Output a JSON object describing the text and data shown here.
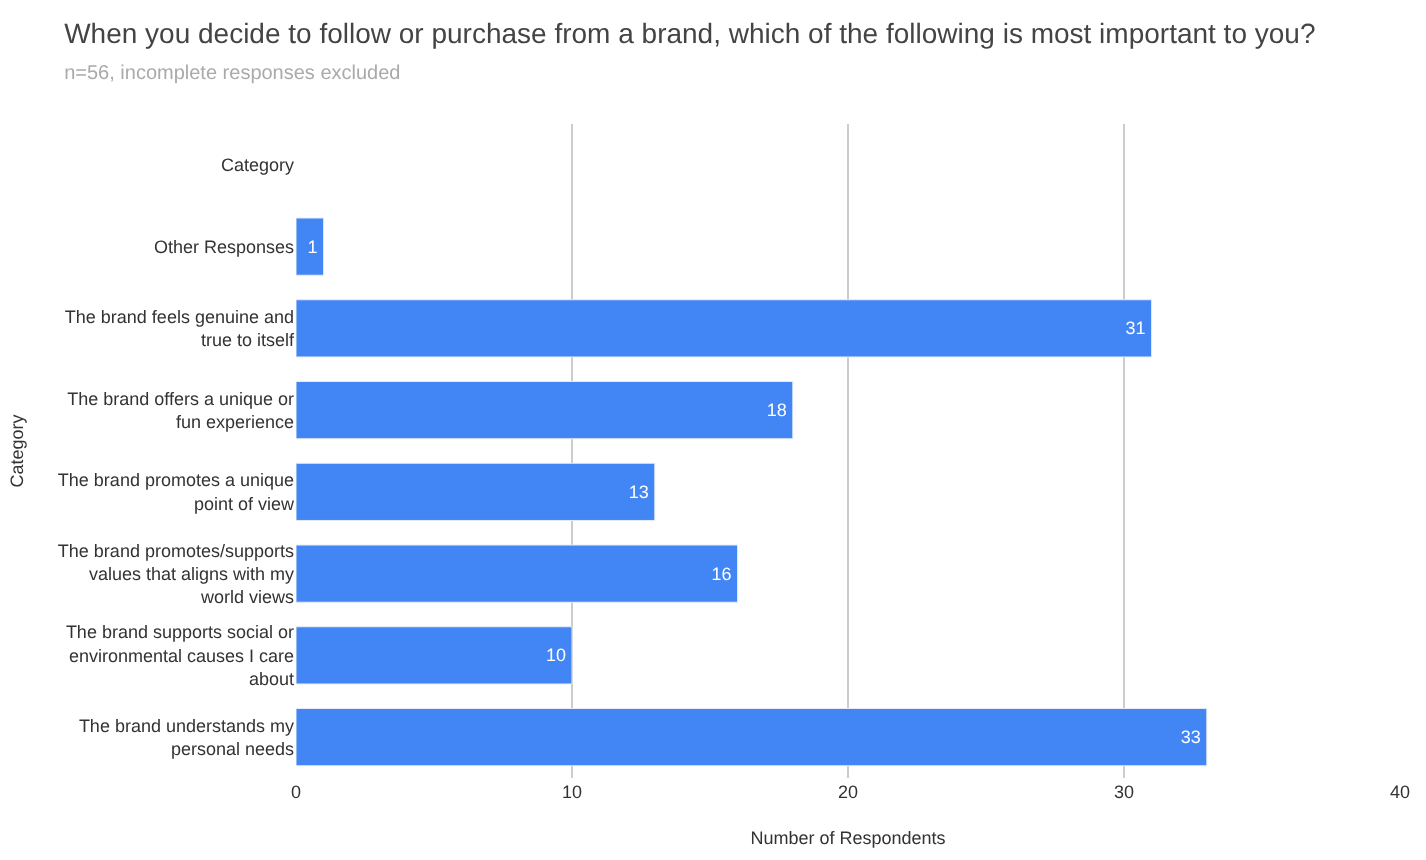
{
  "chart_data": {
    "type": "bar",
    "orientation": "horizontal",
    "title": "When you decide to follow or purchase from a brand, which of the following is most important to you?",
    "subtitle": "n=56, incomplete responses excluded",
    "xlabel": "Number of Respondents",
    "ylabel": "Category",
    "categories": [
      "Category",
      "Other Responses",
      "The brand feels genuine and true to itself",
      "The brand offers a unique or fun experience",
      "The brand promotes a unique point of view",
      "The brand promotes/supports values that aligns with my world views",
      "The brand supports social or environmental causes I care about",
      "The brand understands my personal needs"
    ],
    "values": [
      null,
      1,
      31,
      18,
      13,
      16,
      10,
      33
    ],
    "color": "#4285f4",
    "xlim": [
      0,
      40
    ],
    "xticks": [
      0,
      10,
      20,
      30,
      40
    ],
    "grid": "x",
    "legend": false,
    "data_labels": true
  }
}
